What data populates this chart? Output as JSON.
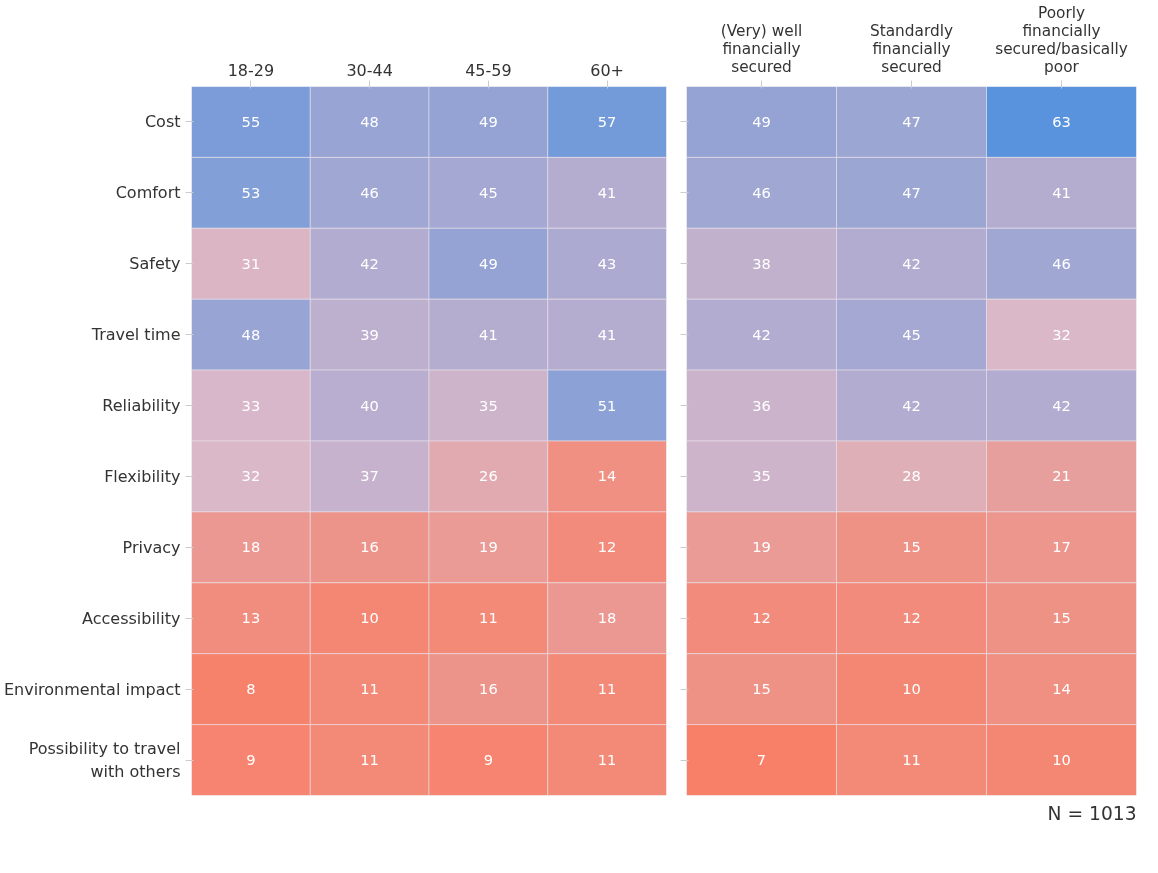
{
  "chart_data": [
    {
      "type": "heatmap",
      "categories": [
        "18-29",
        "30-44",
        "45-59",
        "60+"
      ],
      "y_categories": [
        "Cost",
        "Comfort",
        "Safety",
        "Travel time",
        "Reliability",
        "Flexibility",
        "Privacy",
        "Accessibility",
        "Environmental impact",
        "Possibility to travel with others"
      ],
      "cells": [
        [
          55,
          48,
          49,
          57
        ],
        [
          53,
          46,
          45,
          41
        ],
        [
          31,
          42,
          49,
          43
        ],
        [
          48,
          39,
          41,
          41
        ],
        [
          33,
          40,
          35,
          51
        ],
        [
          32,
          37,
          26,
          14
        ],
        [
          18,
          16,
          19,
          12
        ],
        [
          13,
          10,
          11,
          18
        ],
        [
          8,
          11,
          16,
          11
        ],
        [
          9,
          11,
          9,
          11
        ]
      ],
      "data_labels": true
    },
    {
      "type": "heatmap",
      "categories": [
        "(Very) well financially secured",
        "Standardly financially secured",
        "Poorly financially secured/basically poor"
      ],
      "y_categories": [
        "Cost",
        "Comfort",
        "Safety",
        "Travel time",
        "Reliability",
        "Flexibility",
        "Privacy",
        "Accessibility",
        "Environmental impact",
        "Possibility to travel with others"
      ],
      "cells": [
        [
          49,
          47,
          63
        ],
        [
          46,
          47,
          41
        ],
        [
          38,
          42,
          46
        ],
        [
          42,
          45,
          32
        ],
        [
          36,
          42,
          42
        ],
        [
          35,
          28,
          21
        ],
        [
          19,
          15,
          17
        ],
        [
          12,
          12,
          15
        ],
        [
          15,
          10,
          14
        ],
        [
          7,
          11,
          10
        ]
      ],
      "data_labels": true,
      "tick_labels": "x",
      "annotations": [
        "N = 1013"
      ]
    }
  ]
}
